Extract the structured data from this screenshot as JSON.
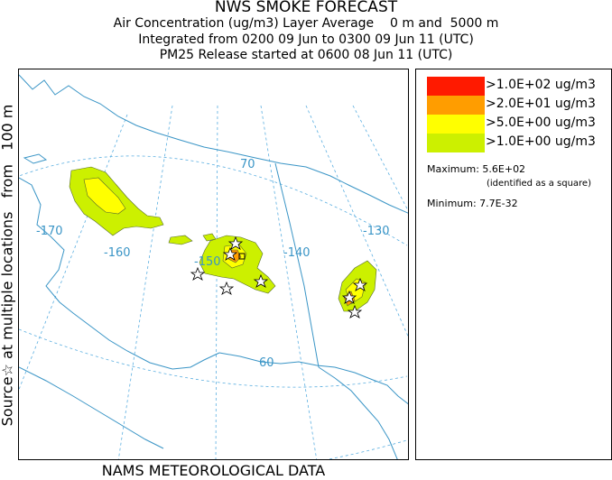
{
  "header": {
    "title": "NWS SMOKE FORECAST",
    "line2": "Air Concentration (ug/m3) Layer Average    0 m and  5000 m",
    "line3": "Integrated from 0200 09 Jun to 0300 09 Jun 11 (UTC)",
    "line4": "PM25 Release started at 0600 08 Jun 11 (UTC)"
  },
  "side_label": "Source☆ at multiple locations   from   100 m",
  "footer": "NAMS METEOROLOGICAL DATA",
  "map": {
    "graticule_labels": {
      "lon_170": "-170",
      "lon_160": "-160",
      "lon_150": "-150",
      "lon_140": "-140",
      "lon_130": "-130",
      "lat_70": "70",
      "lat_60": "60"
    },
    "colors": {
      "coast": "#3a95c6",
      "graticule": "#5aaee0"
    }
  },
  "legend": {
    "entries": [
      {
        "label": ">1.0E+02 ug/m3",
        "color": "#ff1a00"
      },
      {
        "label": ">2.0E+01 ug/m3",
        "color": "#ff9d00"
      },
      {
        "label": ">5.0E+00 ug/m3",
        "color": "#ffff00"
      },
      {
        "label": ">1.0E+00 ug/m3",
        "color": "#ccf000"
      }
    ],
    "maximum": "Maximum: 5.6E+02",
    "max_note": "(identified as a square)",
    "minimum": "Minimum: 7.7E-32"
  }
}
